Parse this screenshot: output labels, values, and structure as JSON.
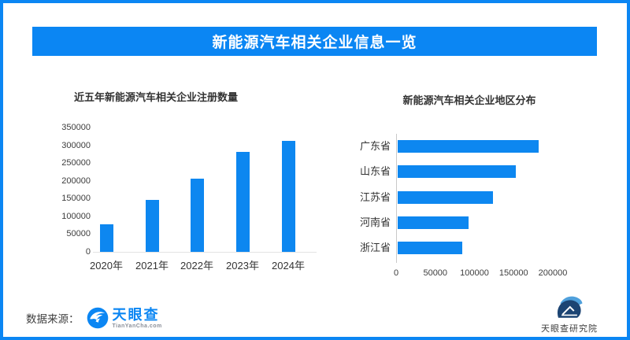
{
  "header": {
    "title": "新能源汽车相关企业信息一览"
  },
  "theme": {
    "accent": "#0B86F3",
    "bar_color": "#0D87F0",
    "logo_navy": "#1C4473",
    "logo_lightblue": "#4FA0DC"
  },
  "chart_data": [
    {
      "type": "bar",
      "orientation": "vertical",
      "title": "近五年新能源汽车相关企业注册数量",
      "categories": [
        "2020年",
        "2021年",
        "2022年",
        "2023年",
        "2024年"
      ],
      "values": [
        78000,
        146000,
        205000,
        282000,
        312000
      ],
      "ylabel": "",
      "xlabel": "",
      "ylim": [
        0,
        350000
      ],
      "yticks": [
        0,
        50000,
        100000,
        150000,
        200000,
        250000,
        300000,
        350000
      ],
      "grid": false,
      "legend": false
    },
    {
      "type": "bar",
      "orientation": "horizontal",
      "title": "新能源汽车相关企业地区分布",
      "categories": [
        "广东省",
        "山东省",
        "江苏省",
        "河南省",
        "浙江省"
      ],
      "values": [
        180000,
        151000,
        122000,
        90000,
        82000
      ],
      "xlabel": "",
      "ylabel": "",
      "xlim": [
        0,
        200000
      ],
      "xticks": [
        0,
        50000,
        100000,
        150000,
        200000
      ],
      "grid": false,
      "legend": false
    }
  ],
  "footer": {
    "source_label": "数据来源：",
    "logo": {
      "wordmark": "天眼查",
      "domain": "TianYanCha.com"
    },
    "research_label": "天眼查研究院"
  }
}
